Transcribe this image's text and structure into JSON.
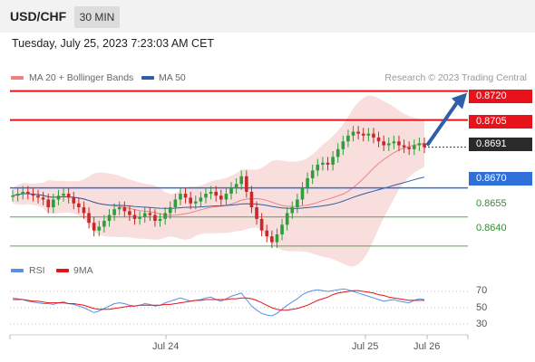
{
  "header": {
    "pair": "USD/CHF",
    "timeframe": "30 MIN",
    "datetime": "Tuesday, July 25, 2023 7:23:03 AM CET"
  },
  "legend": {
    "ma20": "MA 20 + Bollinger Bands",
    "ma50": "MA 50",
    "credit": "Research © 2023 Trading Central",
    "rsi": "RSI",
    "rsi_ma": "9MA",
    "colors": {
      "ma20": "#f08080",
      "ma50": "#2f5fa0",
      "rsi": "#5b8fe0",
      "rsi_ma": "#e8131a"
    }
  },
  "levels": {
    "r2": "0.8720",
    "r1": "0.8705",
    "last": "0.8691",
    "pivot": "0.8670",
    "s1": "0.8655",
    "s2": "0.8640"
  },
  "rsi_ticks": [
    "70",
    "50",
    "30"
  ],
  "x_axis": {
    "jul24": "Jul 24",
    "jul25": "Jul 25",
    "jul26": "Jul 26"
  },
  "chart_data": {
    "type": "candlestick",
    "instrument": "USD/CHF",
    "timeframe": "30 MIN",
    "price_range": [
      0.8632,
      0.8724
    ],
    "support_resistance": [
      0.872,
      0.8705,
      0.867,
      0.8655,
      0.864
    ],
    "last_price": 0.8691,
    "arrow_target": 0.872,
    "close_series": [
      0.8666,
      0.8667,
      0.8668,
      0.8667,
      0.8666,
      0.8665,
      0.8664,
      0.866,
      0.8664,
      0.8666,
      0.8667,
      0.8665,
      0.8662,
      0.866,
      0.8657,
      0.8652,
      0.8648,
      0.865,
      0.8653,
      0.8656,
      0.8659,
      0.866,
      0.8658,
      0.8656,
      0.8654,
      0.8655,
      0.8657,
      0.8656,
      0.8653,
      0.8654,
      0.8657,
      0.866,
      0.8664,
      0.8667,
      0.8665,
      0.8662,
      0.8663,
      0.8665,
      0.8667,
      0.8668,
      0.8666,
      0.8664,
      0.8667,
      0.867,
      0.8672,
      0.8676,
      0.8668,
      0.866,
      0.8654,
      0.8648,
      0.8645,
      0.8642,
      0.8646,
      0.8651,
      0.8657,
      0.866,
      0.8664,
      0.867,
      0.8675,
      0.8679,
      0.8682,
      0.8683,
      0.8682,
      0.8686,
      0.869,
      0.8694,
      0.8697,
      0.8699,
      0.8698,
      0.8697,
      0.8698,
      0.8696,
      0.8694,
      0.8692,
      0.8693,
      0.8694,
      0.8692,
      0.8691,
      0.869,
      0.8692,
      0.8693,
      0.8691
    ],
    "rsi_axis": [
      30,
      50,
      70
    ],
    "rsi_series": [
      62,
      61,
      60,
      58,
      57,
      56,
      55,
      55,
      54,
      56,
      57,
      55,
      54,
      52,
      50,
      47,
      44,
      46,
      49,
      52,
      55,
      56,
      55,
      53,
      52,
      53,
      55,
      54,
      52,
      53,
      56,
      58,
      60,
      62,
      60,
      58,
      59,
      60,
      62,
      63,
      60,
      58,
      61,
      64,
      66,
      68,
      60,
      52,
      47,
      43,
      41,
      40,
      43,
      48,
      53,
      57,
      61,
      66,
      69,
      71,
      72,
      71,
      70,
      71,
      72,
      73,
      72,
      70,
      68,
      66,
      64,
      62,
      60,
      58,
      59,
      60,
      58,
      57,
      56,
      59,
      61,
      60
    ],
    "rsi_ma_series": [
      60,
      60,
      60,
      59,
      58,
      58,
      57,
      56,
      56,
      56,
      56,
      55,
      55,
      54,
      53,
      51,
      49,
      48,
      48,
      48,
      49,
      50,
      51,
      52,
      52,
      53,
      53,
      53,
      53,
      53,
      54,
      54,
      55,
      56,
      57,
      58,
      59,
      59,
      60,
      60,
      60,
      60,
      60,
      61,
      61,
      62,
      62,
      61,
      59,
      56,
      53,
      50,
      48,
      47,
      47,
      48,
      49,
      51,
      53,
      56,
      59,
      61,
      63,
      66,
      68,
      69,
      70,
      71,
      71,
      70,
      69,
      68,
      66,
      65,
      63,
      62,
      61,
      60,
      59,
      59,
      59,
      59
    ],
    "x_labels": [
      "Jul 24",
      "Jul 25",
      "Jul 26"
    ]
  }
}
